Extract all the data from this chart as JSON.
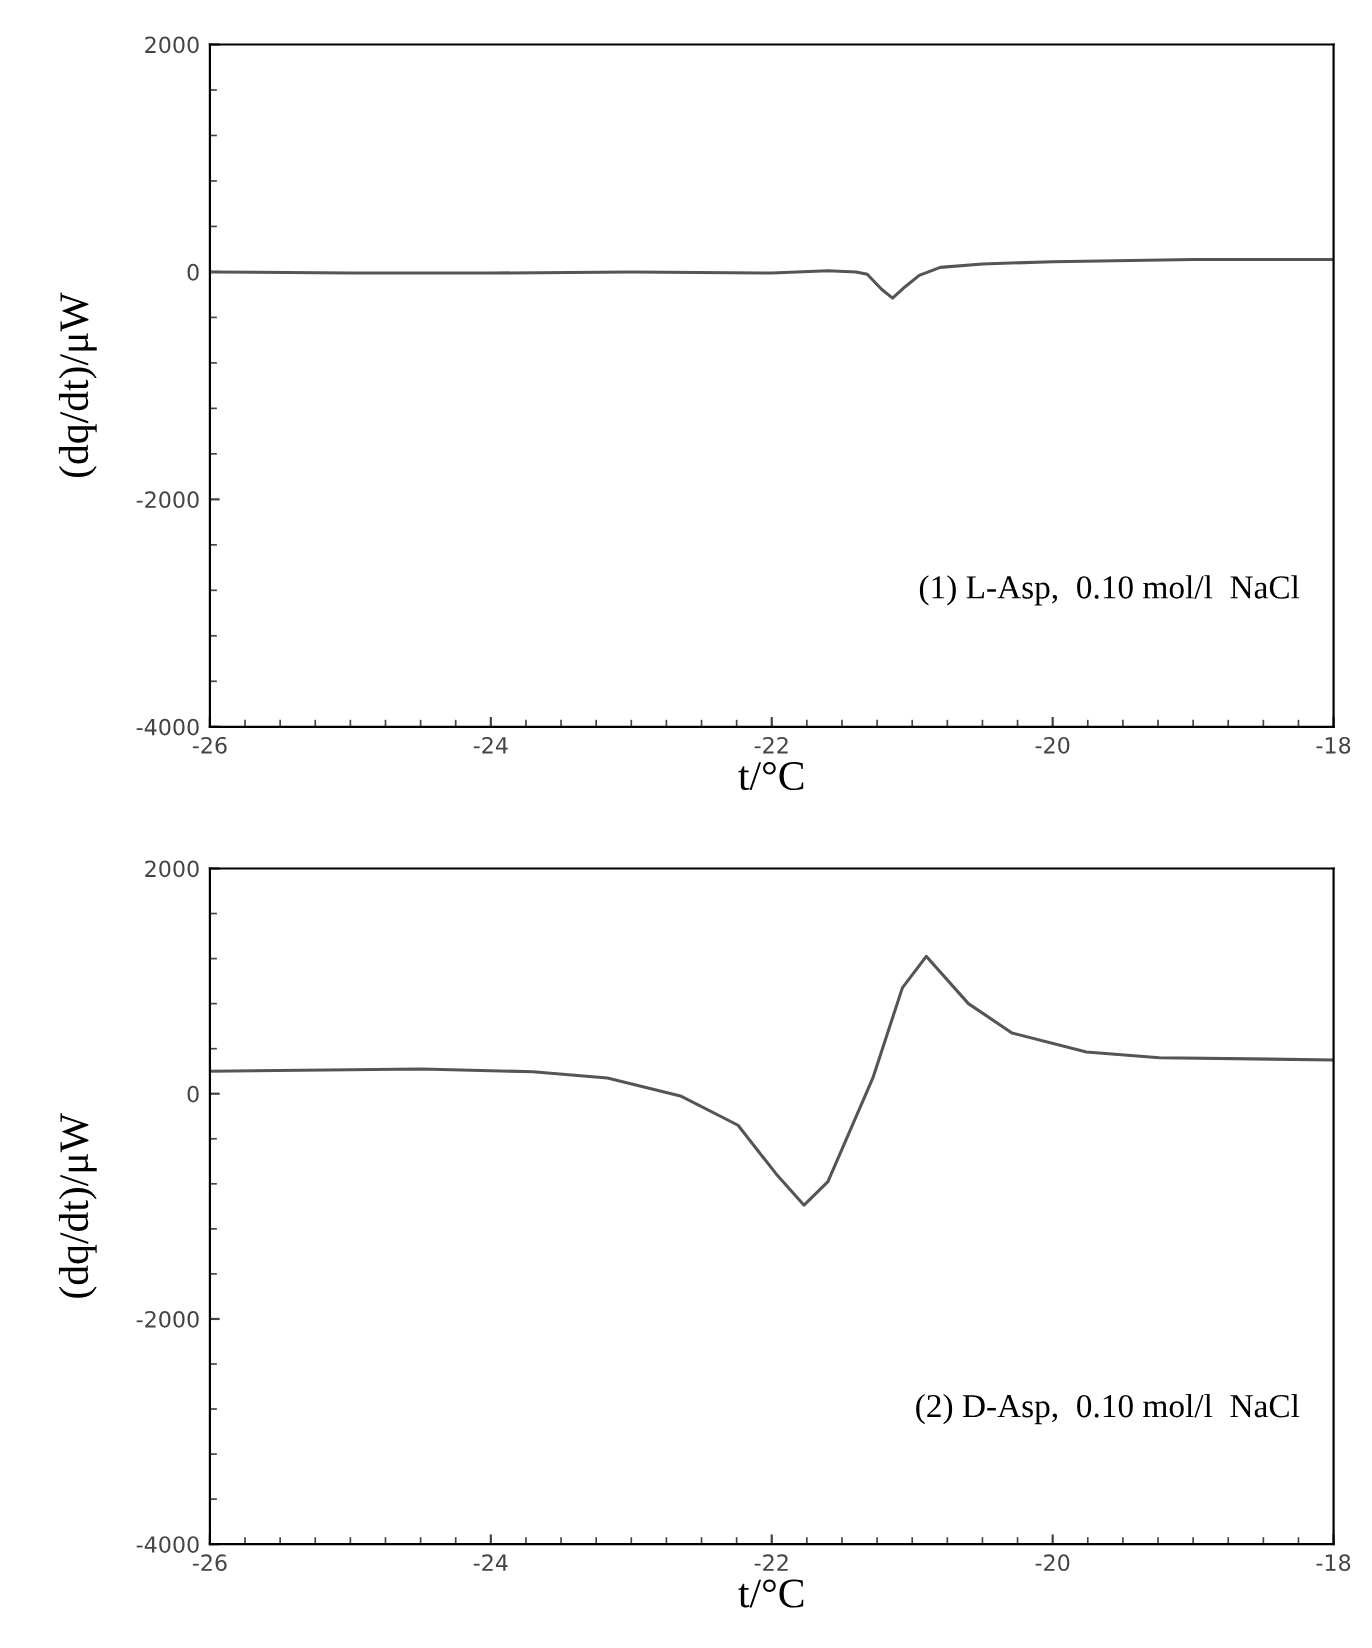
{
  "chart_data": [
    {
      "type": "line",
      "xlabel": "t/°C",
      "ylabel": "(dq/dt)/μW",
      "annotations": [
        "(1) L-Asp,  0.10 mol/l  NaCl"
      ],
      "xlim": [
        -26,
        -18
      ],
      "ylim": [
        -4000,
        2000
      ],
      "xticks": [
        -26,
        -24,
        -22,
        -20,
        -18
      ],
      "yticks": [
        -4000,
        -2000,
        0,
        2000
      ],
      "series": [
        {
          "color": "#555555",
          "x": [
            -26,
            -25,
            -24,
            -23,
            -22,
            -21.6,
            -21.4,
            -21.32,
            -21.22,
            -21.14,
            -21.05,
            -20.95,
            -20.8,
            -20.5,
            -20,
            -19,
            -18
          ],
          "values": [
            0,
            -10,
            -10,
            0,
            -10,
            10,
            0,
            -20,
            -150,
            -230,
            -130,
            -30,
            40,
            70,
            90,
            110,
            110
          ]
        }
      ]
    },
    {
      "type": "line",
      "xlabel": "t/°C",
      "ylabel": "(dq/dt)/μW",
      "annotations": [
        "(2) D-Asp,  0.10 mol/l  NaCl"
      ],
      "xlim": [
        -26,
        -18
      ],
      "ylim": [
        -4000,
        2000
      ],
      "xticks": [
        -26,
        -24,
        -22,
        -20,
        -18
      ],
      "yticks": [
        -4000,
        -2000,
        0,
        2000
      ],
      "series": [
        {
          "color": "#555555",
          "x": [
            -26,
            -24.49,
            -23.7,
            -23.17,
            -22.65,
            -22.24,
            -21.97,
            -21.77,
            -21.6,
            -21.28,
            -21.07,
            -20.9,
            -20.6,
            -20.29,
            -19.76,
            -19.24,
            -18
          ],
          "values": [
            200,
            220,
            195,
            140,
            -20,
            -280,
            -710,
            -990,
            -780,
            140,
            940,
            1220,
            800,
            540,
            370,
            320,
            300
          ]
        }
      ]
    }
  ]
}
